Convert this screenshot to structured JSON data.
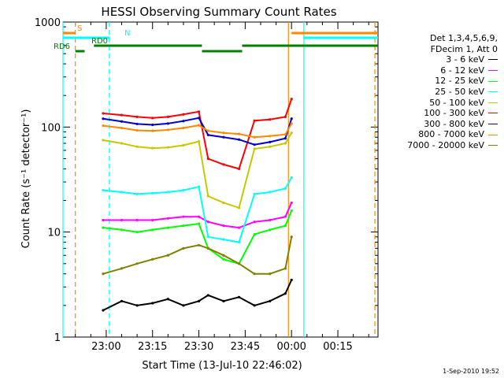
{
  "chart_data": {
    "type": "line",
    "title": "HESSI Observing Summary Count Rates",
    "xlabel": "Start Time (13-Jul-10 22:46:02)",
    "ylabel": "Count Rate (s⁻¹ detector⁻¹)",
    "y_scale": "log",
    "ylim": [
      1,
      1000
    ],
    "xlim": [
      "22:46:02",
      "00:28:30"
    ],
    "x_ticks": [
      "23:00",
      "23:15",
      "23:30",
      "23:45",
      "00:00",
      "00:15"
    ],
    "y_ticks": [
      "1",
      "10",
      "100",
      "1000"
    ],
    "legend_position": "right",
    "legend_header": [
      "Det 1,3,4,5,6,9,",
      "FDecim 1, Att 0"
    ],
    "x": [
      "22:59",
      "23:05",
      "23:10",
      "23:15",
      "23:20",
      "23:25",
      "23:30",
      "23:33",
      "23:38",
      "23:43",
      "23:48",
      "23:53",
      "23:58",
      "00:00"
    ],
    "series": [
      {
        "name": "3 - 6 keV",
        "color": "#000000",
        "values": [
          1.8,
          2.2,
          2.0,
          2.1,
          2.3,
          2.0,
          2.2,
          2.5,
          2.2,
          2.4,
          2.0,
          2.2,
          2.6,
          3.5
        ]
      },
      {
        "name": "6 - 12 keV",
        "color": "#ff00ff",
        "values": [
          13,
          13,
          13,
          13,
          13.5,
          14,
          14,
          12.5,
          11.5,
          11,
          12.5,
          13,
          14,
          19
        ]
      },
      {
        "name": "12 - 25 keV",
        "color": "#00ff00",
        "values": [
          11,
          10.5,
          10,
          10.5,
          11,
          11.5,
          12,
          7,
          5.5,
          5,
          9.5,
          10.5,
          11.5,
          16
        ]
      },
      {
        "name": "25 - 50 keV",
        "color": "#00ffff",
        "values": [
          25,
          24,
          23,
          23.5,
          24,
          25,
          27,
          9,
          8.5,
          8,
          23,
          24,
          26,
          33
        ]
      },
      {
        "name": "50 - 100 keV",
        "color": "#c8c800",
        "values": [
          75,
          70,
          65,
          63,
          64,
          67,
          73,
          22,
          19,
          17,
          62,
          65,
          70,
          88
        ]
      },
      {
        "name": "100 - 300 keV",
        "color": "#ff0000",
        "values": [
          135,
          130,
          125,
          122,
          125,
          132,
          140,
          50,
          44,
          40,
          115,
          118,
          125,
          185
        ]
      },
      {
        "name": "300 - 800 keV",
        "color": "#0000cc",
        "values": [
          120,
          113,
          107,
          105,
          108,
          114,
          122,
          84,
          80,
          76,
          68,
          72,
          78,
          120
        ]
      },
      {
        "name": "800 - 7000 keV",
        "color": "#ff8800",
        "values": [
          103,
          98,
          93,
          92,
          94,
          98,
          104,
          92,
          88,
          86,
          80,
          82,
          85,
          108
        ]
      },
      {
        "name": "7000 - 20000 keV",
        "color": "#808000",
        "values": [
          4.0,
          4.5,
          5.0,
          5.5,
          6.0,
          7.0,
          7.5,
          7.0,
          6.0,
          5.0,
          4.0,
          4.0,
          4.5,
          9.0
        ]
      }
    ],
    "flags": [
      {
        "label": "S",
        "color": "#ff8800",
        "segments": [
          [
            "22:46",
            "22:50"
          ],
          [
            "00:00",
            "00:28"
          ]
        ]
      },
      {
        "label": "N",
        "color": "#00ffff",
        "segments": [
          [
            "22:46",
            "23:01"
          ],
          [
            "00:04",
            "00:28"
          ]
        ]
      },
      {
        "label": "RD0",
        "color": "#008000",
        "segments": [
          [
            "22:56",
            "23:31"
          ],
          [
            "23:44",
            "00:28"
          ]
        ]
      },
      {
        "label": "RD6",
        "color": "#008000",
        "segments": [
          [
            "22:50",
            "22:53"
          ],
          [
            "23:31",
            "23:44"
          ]
        ]
      }
    ],
    "verticals": [
      {
        "t": "22:46",
        "color": "#00ffff",
        "style": "solid"
      },
      {
        "t": "22:50",
        "color": "#ff8800",
        "style": "dashed"
      },
      {
        "t": "23:01",
        "color": "#00ffff",
        "style": "dashed"
      },
      {
        "t": "23:59",
        "color": "#ff8800",
        "style": "solid"
      },
      {
        "t": "00:04",
        "color": "#00ffff",
        "style": "solid"
      },
      {
        "t": "00:27",
        "color": "#ff8800",
        "style": "dashed"
      }
    ]
  },
  "legend": {
    "header_line1": "Det 1,3,4,5,6,9,",
    "header_line2": "FDecim 1, Att 0"
  },
  "footer": {
    "date": "1-Sep-2010 19:52"
  }
}
